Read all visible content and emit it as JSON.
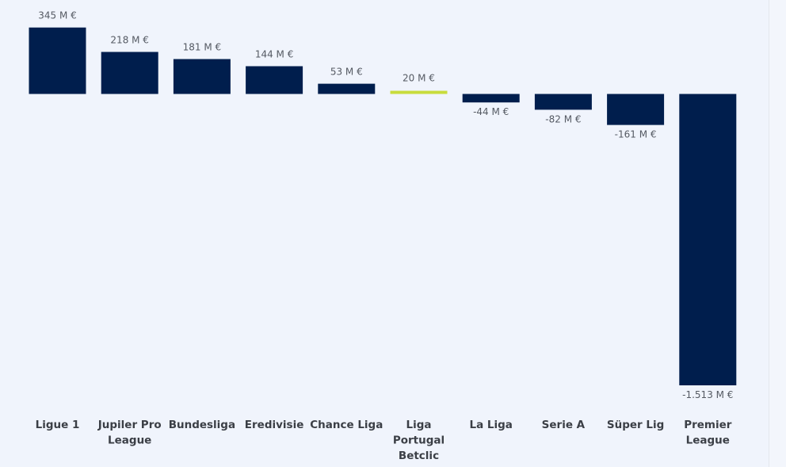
{
  "chart_data": {
    "type": "bar",
    "categories": [
      "Ligue 1",
      "Jupiler Pro League",
      "Bundesliga",
      "Eredivisie",
      "Chance Liga",
      "Liga Portugal Betclic",
      "La Liga",
      "Serie A",
      "Süper Lig",
      "Premier League"
    ],
    "category_lines": [
      [
        "Ligue 1"
      ],
      [
        "Jupiler Pro",
        "League"
      ],
      [
        "Bundesliga"
      ],
      [
        "Eredivisie"
      ],
      [
        "Chance Liga"
      ],
      [
        "Liga",
        "Portugal",
        "Betclic"
      ],
      [
        "La Liga"
      ],
      [
        "Serie A"
      ],
      [
        "Süper Lig"
      ],
      [
        "Premier",
        "League"
      ]
    ],
    "values": [
      345,
      218,
      181,
      144,
      53,
      20,
      -44,
      -82,
      -161,
      -1513
    ],
    "value_labels": [
      "345 M €",
      "218 M €",
      "181 M €",
      "144 M €",
      "53 M €",
      "20 M €",
      "-44 M €",
      "-82 M €",
      "-161 M €",
      "-1.513 M €"
    ],
    "unit": "M €",
    "highlight_index": 5,
    "colors": {
      "bar": "#001e4d",
      "highlight": "#c8dc3c",
      "background": "#f0f4fc"
    },
    "xlabel": "",
    "ylabel": "",
    "grid": false,
    "legend": false
  }
}
